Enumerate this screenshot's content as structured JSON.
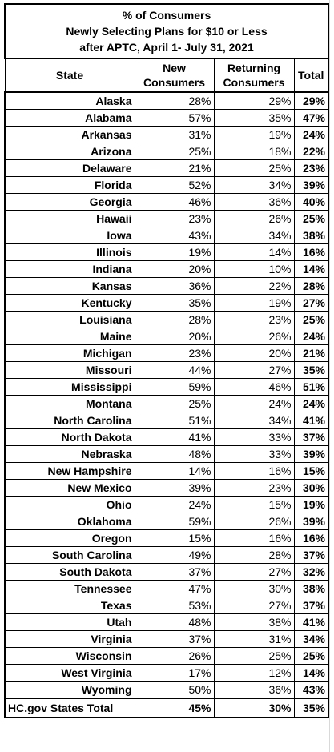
{
  "title": {
    "line1": "% of Consumers",
    "line2": "Newly Selecting Plans for $10 or Less",
    "line3": "after APTC, April 1- July 31, 2021"
  },
  "headers": {
    "state": "State",
    "new_line1": "New",
    "new_line2": "Consumers",
    "returning_line1": "Returning",
    "returning_line2": "Consumers",
    "total": "Total"
  },
  "rows": [
    {
      "state": "Alaska",
      "new": "28%",
      "returning": "29%",
      "total": "29%"
    },
    {
      "state": "Alabama",
      "new": "57%",
      "returning": "35%",
      "total": "47%"
    },
    {
      "state": "Arkansas",
      "new": "31%",
      "returning": "19%",
      "total": "24%"
    },
    {
      "state": "Arizona",
      "new": "25%",
      "returning": "18%",
      "total": "22%"
    },
    {
      "state": "Delaware",
      "new": "21%",
      "returning": "25%",
      "total": "23%"
    },
    {
      "state": "Florida",
      "new": "52%",
      "returning": "34%",
      "total": "39%"
    },
    {
      "state": "Georgia",
      "new": "46%",
      "returning": "36%",
      "total": "40%"
    },
    {
      "state": "Hawaii",
      "new": "23%",
      "returning": "26%",
      "total": "25%"
    },
    {
      "state": "Iowa",
      "new": "43%",
      "returning": "34%",
      "total": "38%"
    },
    {
      "state": "Illinois",
      "new": "19%",
      "returning": "14%",
      "total": "16%"
    },
    {
      "state": "Indiana",
      "new": "20%",
      "returning": "10%",
      "total": "14%"
    },
    {
      "state": "Kansas",
      "new": "36%",
      "returning": "22%",
      "total": "28%"
    },
    {
      "state": "Kentucky",
      "new": "35%",
      "returning": "19%",
      "total": "27%"
    },
    {
      "state": "Louisiana",
      "new": "28%",
      "returning": "23%",
      "total": "25%"
    },
    {
      "state": "Maine",
      "new": "20%",
      "returning": "26%",
      "total": "24%"
    },
    {
      "state": "Michigan",
      "new": "23%",
      "returning": "20%",
      "total": "21%"
    },
    {
      "state": "Missouri",
      "new": "44%",
      "returning": "27%",
      "total": "35%"
    },
    {
      "state": "Mississippi",
      "new": "59%",
      "returning": "46%",
      "total": "51%"
    },
    {
      "state": "Montana",
      "new": "25%",
      "returning": "24%",
      "total": "24%"
    },
    {
      "state": "North Carolina",
      "new": "51%",
      "returning": "34%",
      "total": "41%"
    },
    {
      "state": "North Dakota",
      "new": "41%",
      "returning": "33%",
      "total": "37%"
    },
    {
      "state": "Nebraska",
      "new": "48%",
      "returning": "33%",
      "total": "39%"
    },
    {
      "state": "New Hampshire",
      "new": "14%",
      "returning": "16%",
      "total": "15%"
    },
    {
      "state": "New Mexico",
      "new": "39%",
      "returning": "23%",
      "total": "30%"
    },
    {
      "state": "Ohio",
      "new": "24%",
      "returning": "15%",
      "total": "19%"
    },
    {
      "state": "Oklahoma",
      "new": "59%",
      "returning": "26%",
      "total": "39%"
    },
    {
      "state": "Oregon",
      "new": "15%",
      "returning": "16%",
      "total": "16%"
    },
    {
      "state": "South Carolina",
      "new": "49%",
      "returning": "28%",
      "total": "37%"
    },
    {
      "state": "South Dakota",
      "new": "37%",
      "returning": "27%",
      "total": "32%"
    },
    {
      "state": "Tennessee",
      "new": "47%",
      "returning": "30%",
      "total": "38%"
    },
    {
      "state": "Texas",
      "new": "53%",
      "returning": "27%",
      "total": "37%"
    },
    {
      "state": "Utah",
      "new": "48%",
      "returning": "38%",
      "total": "41%"
    },
    {
      "state": "Virginia",
      "new": "37%",
      "returning": "31%",
      "total": "34%"
    },
    {
      "state": "Wisconsin",
      "new": "26%",
      "returning": "25%",
      "total": "25%"
    },
    {
      "state": "West Virginia",
      "new": "17%",
      "returning": "12%",
      "total": "14%"
    },
    {
      "state": "Wyoming",
      "new": "50%",
      "returning": "36%",
      "total": "43%"
    }
  ],
  "totals": {
    "state": "HC.gov States Total",
    "new": "45%",
    "returning": "30%",
    "total": "35%"
  },
  "colors": {
    "border": "#000000",
    "gridline": "#d9d9d9",
    "background": "#ffffff"
  }
}
